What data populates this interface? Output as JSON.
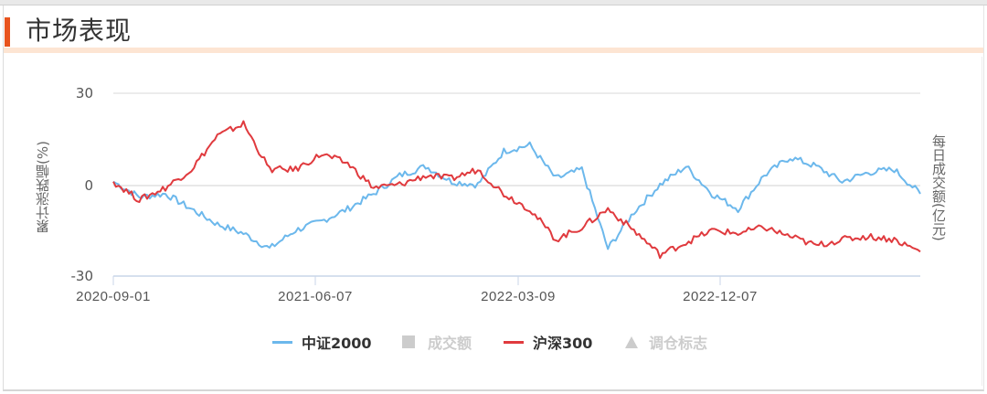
{
  "header": {
    "title": "市场表现",
    "accent_color": "#e8541e"
  },
  "chart": {
    "y_axis_left_label": "累计涨跌幅(%)",
    "y_axis_right_label": "每日成交额(亿元)",
    "y_ticks": [
      "30",
      "0",
      "-30"
    ],
    "x_ticks": [
      "2020-09-01",
      "2021-06-07",
      "2022-03-09",
      "2022-12-07"
    ]
  },
  "legend": [
    {
      "label": "中证2000",
      "type": "line",
      "color": "#6cb8ec",
      "active": true
    },
    {
      "label": "成交额",
      "type": "square",
      "color": "#cccccc",
      "active": false
    },
    {
      "label": "沪深300",
      "type": "line",
      "color": "#e03a3e",
      "active": true
    },
    {
      "label": "调仓标志",
      "type": "triangle",
      "color": "#cccccc",
      "active": false
    }
  ],
  "chart_data": {
    "type": "line",
    "title": "市场表现",
    "xlabel": "",
    "ylabel": "累计涨跌幅(%)",
    "y2label": "每日成交额(亿元)",
    "ylim": [
      -30,
      30
    ],
    "yticks": [
      30,
      0,
      -30
    ],
    "grid": true,
    "legend_position": "bottom",
    "x_tick_labels": [
      "2020-09-01",
      "2021-06-07",
      "2022-03-09",
      "2022-12-07"
    ],
    "x": [
      "2020-09-01",
      "2020-10-15",
      "2020-11-30",
      "2021-01-15",
      "2021-02-10",
      "2021-03-01",
      "2021-04-15",
      "2021-06-07",
      "2021-07-15",
      "2021-08-15",
      "2021-09-15",
      "2021-10-20",
      "2021-12-01",
      "2021-12-20",
      "2022-01-20",
      "2022-03-09",
      "2022-04-27",
      "2022-05-30",
      "2022-07-05",
      "2022-08-10",
      "2022-09-10",
      "2022-10-31",
      "2022-12-07",
      "2023-01-15",
      "2023-02-20",
      "2023-04-10",
      "2023-05-30",
      "2023-07-10",
      "2023-08-20",
      "2023-10-10",
      "2023-11-20",
      "2023-12-20"
    ],
    "series": [
      {
        "name": "中证2000",
        "color": "#6cb8ec",
        "values": [
          1,
          -4,
          -3,
          -8,
          -13,
          -16,
          -21,
          -15,
          -12,
          -8,
          -3,
          3,
          6,
          1,
          0,
          11,
          13,
          2,
          5,
          -21,
          -9,
          0,
          6,
          -3,
          -8,
          3,
          9,
          6,
          1,
          4,
          5,
          -3
        ]
      },
      {
        "name": "沪深300",
        "color": "#e03a3e",
        "values": [
          1,
          -5,
          -1,
          5,
          16,
          20,
          5,
          5,
          10,
          7,
          -1,
          0,
          3,
          2,
          5,
          -3,
          -8,
          -18,
          -14,
          -8,
          -15,
          -23,
          -19,
          -15,
          -16,
          -14,
          -17,
          -20,
          -18,
          -17,
          -18,
          -22
        ]
      }
    ]
  }
}
